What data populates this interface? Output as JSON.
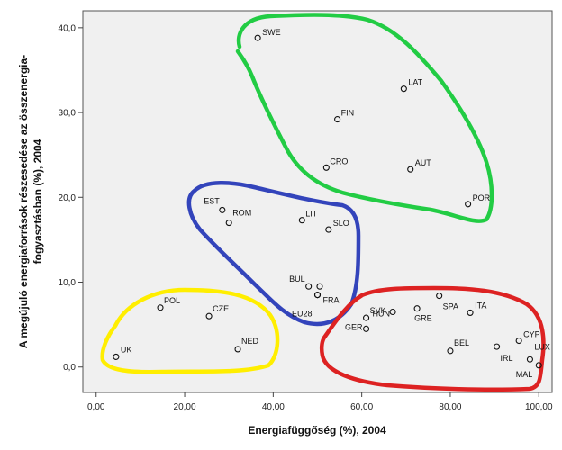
{
  "chart_data": {
    "type": "scatter",
    "xlabel": "Energiafüggőség (%), 2004",
    "ylabel_lines": [
      "A megújuló energiaforrások részesedése az összenergia-",
      "fogyasztásban (%), 2004"
    ],
    "xlim": [
      -3,
      103
    ],
    "ylim": [
      -3,
      42
    ],
    "x_ticks": [
      0,
      20,
      40,
      60,
      80,
      100
    ],
    "x_tick_labels": [
      "0,00",
      "20,00",
      "40,00",
      "60,00",
      "80,00",
      "100,00"
    ],
    "y_ticks": [
      0,
      10,
      20,
      30,
      40
    ],
    "y_tick_labels": [
      "0,0",
      "10,0",
      "20,0",
      "30,0",
      "40,0"
    ],
    "grid": false,
    "points": [
      {
        "label": "SWE",
        "x": 36.5,
        "y": 38.8
      },
      {
        "label": "LAT",
        "x": 69.5,
        "y": 32.8
      },
      {
        "label": "FIN",
        "x": 54.5,
        "y": 29.2
      },
      {
        "label": "CRO",
        "x": 52.0,
        "y": 23.5
      },
      {
        "label": "AUT",
        "x": 71.0,
        "y": 23.3
      },
      {
        "label": "POR",
        "x": 84.0,
        "y": 19.2
      },
      {
        "label": "EST",
        "x": 28.5,
        "y": 18.5
      },
      {
        "label": "ROM",
        "x": 30.0,
        "y": 17.0
      },
      {
        "label": "LIT",
        "x": 46.5,
        "y": 17.3
      },
      {
        "label": "SLO",
        "x": 52.5,
        "y": 16.2
      },
      {
        "label": "BUL",
        "x": 48.0,
        "y": 9.5
      },
      {
        "label": "",
        "x": 50.5,
        "y": 9.5
      },
      {
        "label": "FRA",
        "x": 50.0,
        "y": 8.5
      },
      {
        "label": "EU28",
        "x": 50.0,
        "y": 8.5
      },
      {
        "label": "POL",
        "x": 14.5,
        "y": 7.0
      },
      {
        "label": "CZE",
        "x": 25.5,
        "y": 6.0
      },
      {
        "label": "UK",
        "x": 4.5,
        "y": 1.2
      },
      {
        "label": "NED",
        "x": 32.0,
        "y": 2.1
      },
      {
        "label": "SVK",
        "x": 61.0,
        "y": 5.8
      },
      {
        "label": "HUN",
        "x": 67.0,
        "y": 6.5
      },
      {
        "label": "GER",
        "x": 61.0,
        "y": 4.5
      },
      {
        "label": "GRE",
        "x": 72.5,
        "y": 6.9
      },
      {
        "label": "SPA",
        "x": 77.5,
        "y": 8.4
      },
      {
        "label": "ITA",
        "x": 84.5,
        "y": 6.4
      },
      {
        "label": "CYP",
        "x": 95.5,
        "y": 3.1
      },
      {
        "label": "BEL",
        "x": 80.0,
        "y": 1.9
      },
      {
        "label": "IRL",
        "x": 90.5,
        "y": 2.4
      },
      {
        "label": "LUX",
        "x": 98.0,
        "y": 0.9
      },
      {
        "label": "MAL",
        "x": 100.0,
        "y": 0.2
      }
    ],
    "clusters": [
      {
        "color": "#22cc44"
      },
      {
        "color": "#3344bb"
      },
      {
        "color": "#ffee00"
      },
      {
        "color": "#dd2222"
      }
    ]
  }
}
